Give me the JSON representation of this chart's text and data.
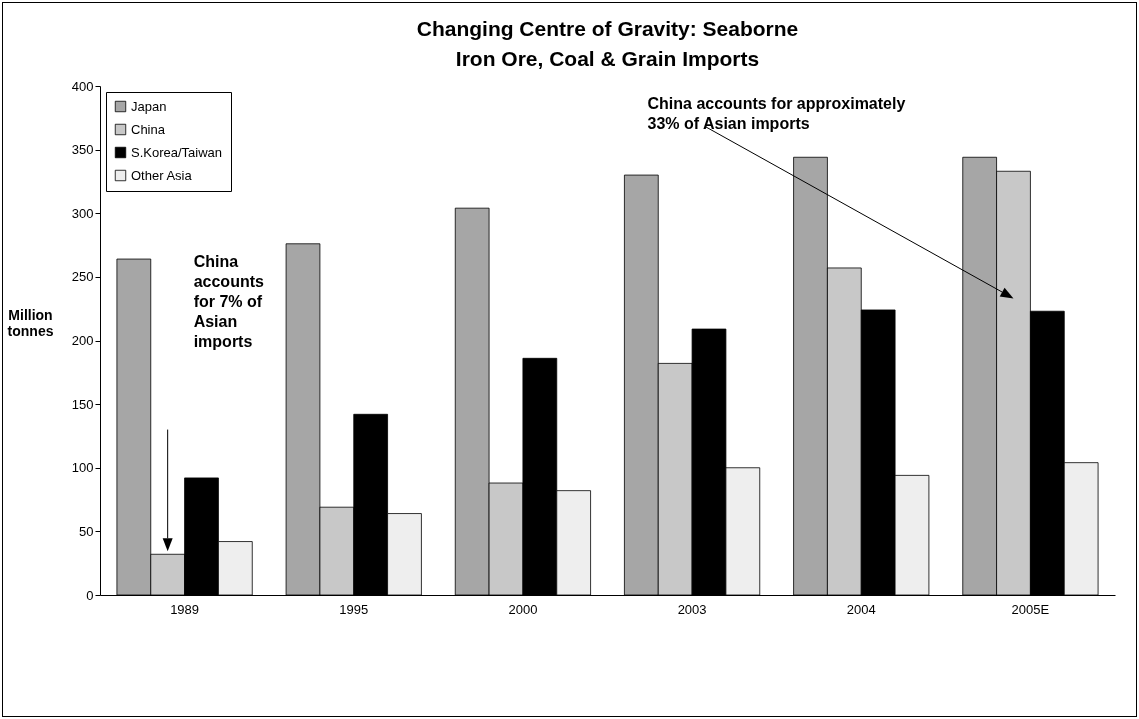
{
  "chart_data": {
    "type": "bar",
    "title": "Changing Centre of Gravity: Seaborne Iron Ore, Coal & Grain Imports",
    "ylabel": "Million tonnes",
    "categories": [
      "1989",
      "1995",
      "2000",
      "2003",
      "2004",
      "2005E"
    ],
    "series": [
      {
        "name": "Japan",
        "color": "#a6a6a6",
        "values": [
          264,
          276,
          304,
          330,
          344,
          344
        ]
      },
      {
        "name": "China",
        "color": "#c8c8c8",
        "values": [
          32,
          69,
          88,
          182,
          257,
          333
        ]
      },
      {
        "name": "S.Korea/Taiwan",
        "color": "#000000",
        "values": [
          92,
          142,
          186,
          209,
          224,
          223
        ]
      },
      {
        "name": "Other Asia",
        "color": "#eeeeee",
        "values": [
          42,
          64,
          82,
          100,
          94,
          104
        ]
      }
    ],
    "ylim": [
      0,
      400
    ],
    "yticks": [
      0,
      50,
      100,
      150,
      200,
      250,
      300,
      350,
      400
    ],
    "grid": false,
    "legend": "top left",
    "annotations": [
      "China accounts for 7% of Asian imports",
      "China accounts for approximately 33% of Asian imports"
    ]
  }
}
